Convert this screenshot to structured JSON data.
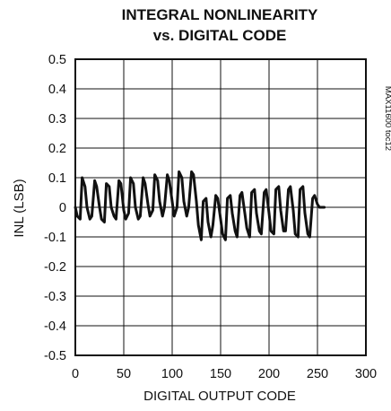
{
  "chart_data": {
    "type": "line",
    "title_lines": [
      "INTEGRAL NONLINEARITY",
      "vs. DIGITAL CODE"
    ],
    "xlabel": "DIGITAL OUTPUT CODE",
    "ylabel": "INL (LSB)",
    "xlim": [
      0,
      300
    ],
    "ylim": [
      -0.5,
      0.5
    ],
    "xticks": [
      "0",
      "50",
      "100",
      "150",
      "200",
      "250",
      "300"
    ],
    "yticks": [
      "0.5",
      "0.4",
      "0.3",
      "0.2",
      "0.1",
      "0",
      "-0.1",
      "-0.2",
      "-0.3",
      "-0.4",
      "-0.5"
    ],
    "grid": true,
    "side_note": "MAX11600 toc12",
    "line_color": "#111111",
    "series": [
      {
        "x": [
          0,
          2,
          5,
          7,
          10,
          12,
          15,
          17,
          20,
          22,
          25,
          27,
          30,
          32,
          35,
          37,
          40,
          42,
          45,
          47,
          50,
          52,
          55,
          57,
          60,
          62,
          65,
          67,
          70,
          72,
          75,
          77,
          80,
          82,
          85,
          87,
          90,
          92,
          95,
          97,
          100,
          102,
          105,
          107,
          110,
          112,
          115,
          117,
          120,
          122,
          125,
          127,
          130,
          132,
          135,
          137,
          140,
          142,
          145,
          147,
          150,
          152,
          155,
          157,
          160,
          162,
          165,
          167,
          170,
          172,
          175,
          177,
          180,
          182,
          185,
          187,
          190,
          192,
          195,
          197,
          200,
          202,
          205,
          207,
          210,
          212,
          215,
          217,
          220,
          222,
          225,
          227,
          230,
          232,
          235,
          237,
          240,
          242,
          245,
          247,
          250,
          252,
          255,
          257
        ],
        "y": [
          0.0,
          -0.03,
          -0.04,
          0.1,
          0.07,
          0.0,
          -0.04,
          -0.03,
          0.09,
          0.07,
          0.0,
          -0.04,
          -0.05,
          0.08,
          0.07,
          0.0,
          -0.03,
          -0.04,
          0.09,
          0.08,
          -0.01,
          -0.04,
          -0.02,
          0.1,
          0.08,
          0.0,
          -0.04,
          -0.03,
          0.1,
          0.08,
          0.01,
          -0.03,
          -0.01,
          0.11,
          0.09,
          0.02,
          -0.03,
          0.0,
          0.11,
          0.09,
          0.02,
          -0.03,
          0.0,
          0.12,
          0.1,
          0.02,
          -0.03,
          0.0,
          0.12,
          0.11,
          0.02,
          -0.06,
          -0.11,
          0.02,
          0.03,
          -0.05,
          -0.1,
          -0.06,
          0.04,
          0.03,
          -0.04,
          -0.09,
          -0.11,
          0.03,
          0.04,
          -0.02,
          -0.08,
          -0.1,
          0.04,
          0.05,
          -0.02,
          -0.07,
          -0.1,
          0.05,
          0.06,
          -0.02,
          -0.08,
          -0.09,
          0.05,
          0.06,
          -0.02,
          -0.08,
          -0.09,
          0.06,
          0.07,
          -0.01,
          -0.08,
          -0.08,
          0.06,
          0.07,
          -0.01,
          -0.09,
          -0.1,
          0.06,
          0.07,
          -0.02,
          -0.09,
          -0.1,
          0.03,
          0.04,
          0.01,
          0.0,
          0.0,
          0.0
        ]
      }
    ]
  }
}
